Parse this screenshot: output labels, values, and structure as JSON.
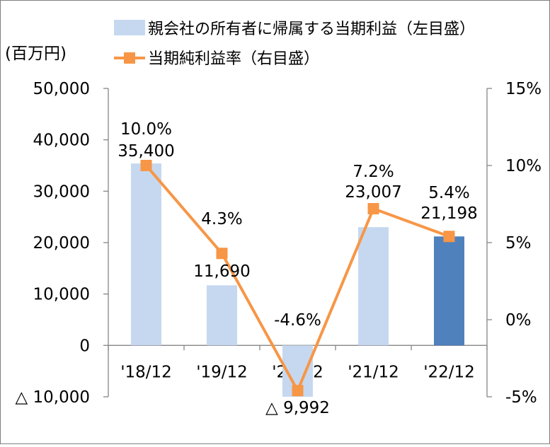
{
  "chart_data": {
    "type": "bar+line",
    "unit_label": "(百万円)",
    "categories": [
      "'18/12",
      "'19/12",
      "'20/12",
      "'21/12",
      "'22/12"
    ],
    "series": [
      {
        "name": "親会社の所有者に帰属する当期利益（左目盛）",
        "type": "bar",
        "axis": "left",
        "values": [
          35400,
          11690,
          -9992,
          23007,
          21198
        ],
        "labels": [
          "35,400",
          "11,690",
          "△ 9,992",
          "23,007",
          "21,198"
        ],
        "color": "#c6d8f0",
        "highlight_color": "#4f81bd",
        "highlight_index": 4
      },
      {
        "name": "当期純利益率（右目盛）",
        "type": "line",
        "axis": "right",
        "values": [
          10.0,
          4.3,
          -4.6,
          7.2,
          5.4
        ],
        "labels": [
          "10.0%",
          "4.3%",
          "-4.6%",
          "7.2%",
          "5.4%"
        ],
        "color": "#f79646"
      }
    ],
    "left_axis": {
      "range": [
        -10000,
        50000
      ],
      "ticks": [
        50000,
        40000,
        30000,
        20000,
        10000,
        0,
        -10000
      ],
      "tick_labels": [
        "50,000",
        "40,000",
        "30,000",
        "20,000",
        "10,000",
        "0",
        "△ 10,000"
      ]
    },
    "right_axis": {
      "range": [
        -5,
        15
      ],
      "ticks": [
        15,
        10,
        5,
        0,
        -5
      ],
      "tick_labels": [
        "15%",
        "10%",
        "5%",
        "0%",
        "-5%"
      ]
    },
    "grid": false,
    "legend": "top"
  }
}
